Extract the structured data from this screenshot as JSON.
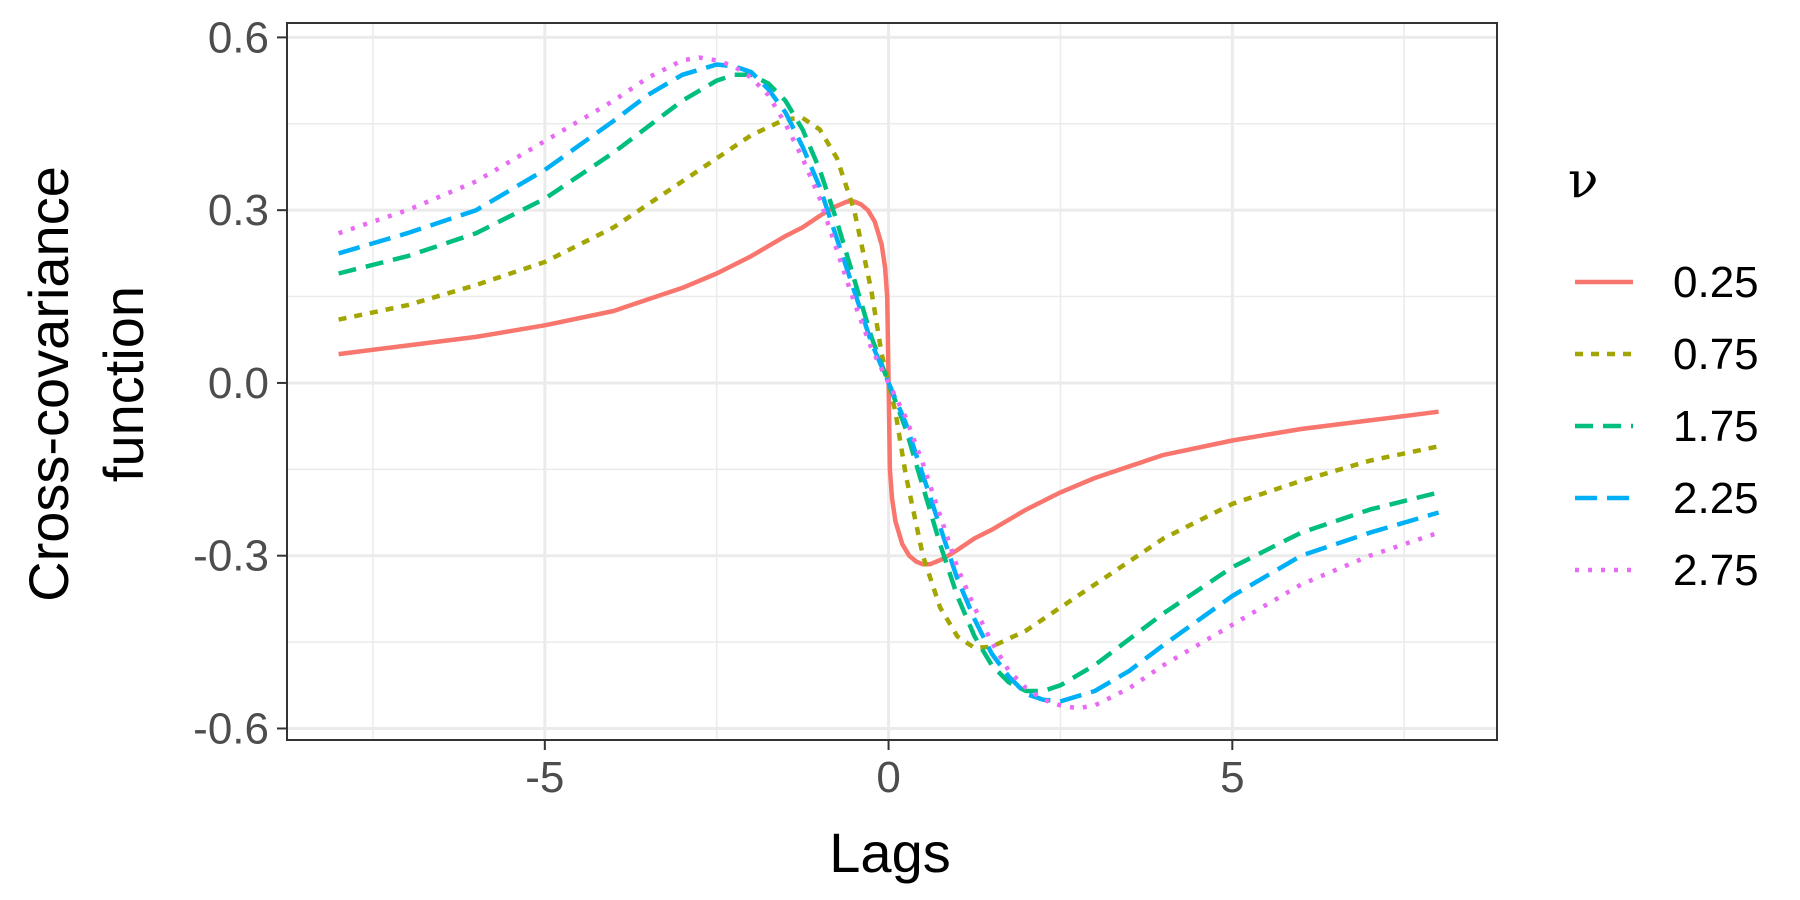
{
  "chart_data": {
    "type": "line",
    "title": "",
    "xlabel": "Lags",
    "ylabel_lines": [
      "Cross-covariance",
      "function"
    ],
    "xlim": [
      -8.75,
      8.85
    ],
    "ylim": [
      -0.62,
      0.625
    ],
    "xticks": [
      -5,
      0,
      5
    ],
    "xtick_labels": [
      "-5",
      "0",
      "5"
    ],
    "yticks": [
      -0.6,
      -0.3,
      0.0,
      0.3,
      0.6
    ],
    "ytick_labels": [
      "-0.6",
      "-0.3",
      "0.0",
      "0.3",
      "0.6"
    ],
    "grid": true,
    "legend": {
      "title": "ν",
      "position": "right"
    },
    "series": [
      {
        "name": "0.25",
        "color": "#F8766D",
        "dash": "solid",
        "x": [
          0,
          0.02,
          0.05,
          0.1,
          0.2,
          0.3,
          0.4,
          0.5,
          0.6,
          0.7,
          0.8,
          1,
          1.25,
          1.5,
          2,
          2.5,
          3,
          3.5,
          4,
          5,
          6,
          7,
          8
        ],
        "y": [
          0,
          -0.15,
          -0.2,
          -0.24,
          -0.28,
          -0.3,
          -0.31,
          -0.315,
          -0.315,
          -0.31,
          -0.305,
          -0.29,
          -0.27,
          -0.255,
          -0.22,
          -0.19,
          -0.165,
          -0.145,
          -0.125,
          -0.1,
          -0.08,
          -0.065,
          -0.05
        ]
      },
      {
        "name": "0.75",
        "color": "#A3A500",
        "dash": "dot",
        "x": [
          0,
          0.1,
          0.25,
          0.5,
          0.75,
          1,
          1.25,
          1.5,
          2,
          2.5,
          3,
          3.5,
          4,
          5,
          6,
          7,
          8
        ],
        "y": [
          0,
          -0.05,
          -0.16,
          -0.3,
          -0.39,
          -0.44,
          -0.46,
          -0.458,
          -0.43,
          -0.39,
          -0.35,
          -0.31,
          -0.27,
          -0.21,
          -0.17,
          -0.135,
          -0.11
        ]
      },
      {
        "name": "1.75",
        "color": "#00BF7D",
        "dash": "dash",
        "x": [
          0,
          0.25,
          0.5,
          0.75,
          1,
          1.25,
          1.5,
          1.75,
          2,
          2.25,
          2.5,
          3,
          3.5,
          4,
          5,
          6,
          7,
          8
        ],
        "y": [
          0,
          -0.08,
          -0.18,
          -0.28,
          -0.37,
          -0.44,
          -0.49,
          -0.52,
          -0.535,
          -0.535,
          -0.525,
          -0.49,
          -0.445,
          -0.4,
          -0.32,
          -0.26,
          -0.22,
          -0.19
        ]
      },
      {
        "name": "2.25",
        "color": "#00B0F6",
        "dash": "longdash",
        "x": [
          0,
          0.25,
          0.5,
          0.75,
          1,
          1.25,
          1.5,
          1.75,
          2,
          2.25,
          2.5,
          3,
          3.5,
          4,
          5,
          6,
          7,
          8
        ],
        "y": [
          0,
          -0.07,
          -0.16,
          -0.25,
          -0.34,
          -0.41,
          -0.47,
          -0.51,
          -0.54,
          -0.55,
          -0.553,
          -0.535,
          -0.5,
          -0.455,
          -0.37,
          -0.3,
          -0.26,
          -0.225
        ]
      },
      {
        "name": "2.75",
        "color": "#E76BF3",
        "dash": "dotted",
        "x": [
          0,
          0.25,
          0.5,
          0.75,
          1,
          1.25,
          1.5,
          1.75,
          2,
          2.25,
          2.5,
          2.75,
          3,
          3.5,
          4,
          5,
          6,
          7,
          8
        ],
        "y": [
          0,
          -0.06,
          -0.14,
          -0.23,
          -0.32,
          -0.39,
          -0.45,
          -0.5,
          -0.53,
          -0.55,
          -0.56,
          -0.565,
          -0.56,
          -0.53,
          -0.49,
          -0.42,
          -0.35,
          -0.3,
          -0.26
        ]
      }
    ]
  }
}
